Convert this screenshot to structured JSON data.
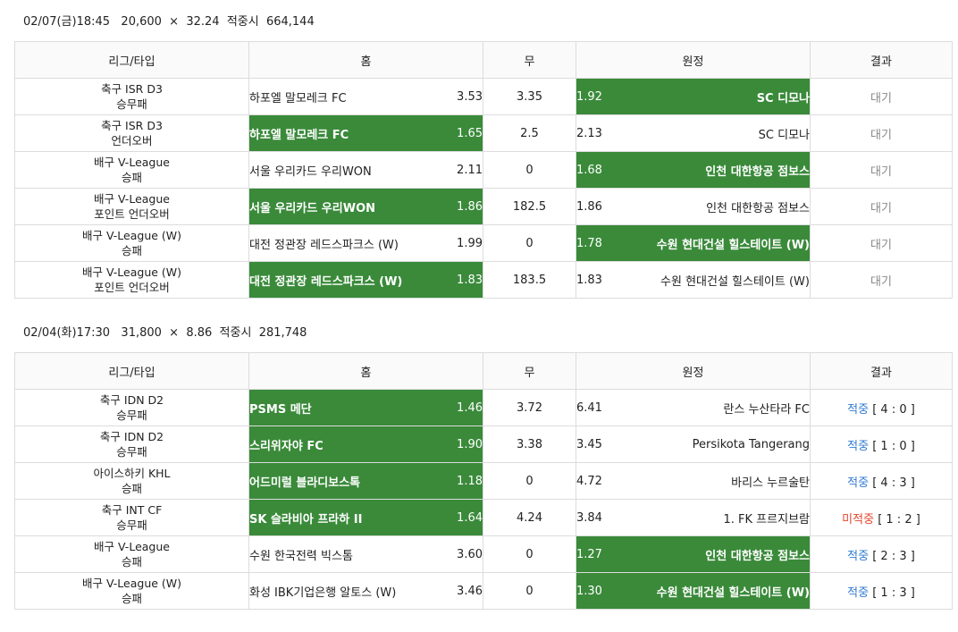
{
  "colors": {
    "highlight": "#3a8a3a",
    "hit": "#2f7ad2",
    "miss": "#e4452b",
    "wait": "#888888"
  },
  "headers": {
    "league": "리그/타입",
    "home": "홈",
    "draw": "무",
    "away": "원정",
    "result": "결과"
  },
  "sections": [
    {
      "summary": "02/07(금)18:45   20,600  ×  32.24  적중시  664,144",
      "rows": [
        {
          "league": "축구 ISR D3",
          "type": "승무패",
          "home": "하포엘 말모레크 FC",
          "home_odds": "3.53",
          "draw": "3.35",
          "away_odds": "1.92",
          "away": "SC 디모나",
          "result": "대기",
          "pick": "away",
          "status": "wait"
        },
        {
          "league": "축구 ISR D3",
          "type": "언더오버",
          "home": "하포엘 말모레크 FC",
          "home_odds": "1.65",
          "draw": "2.5",
          "away_odds": "2.13",
          "away": "SC 디모나",
          "result": "대기",
          "pick": "home",
          "status": "wait"
        },
        {
          "league": "배구 V-League",
          "type": "승패",
          "home": "서울 우리카드 우리WON",
          "home_odds": "2.11",
          "draw": "0",
          "away_odds": "1.68",
          "away": "인천 대한항공 점보스",
          "result": "대기",
          "pick": "away",
          "status": "wait"
        },
        {
          "league": "배구 V-League",
          "type": "포인트 언더오버",
          "home": "서울 우리카드 우리WON",
          "home_odds": "1.86",
          "draw": "182.5",
          "away_odds": "1.86",
          "away": "인천 대한항공 점보스",
          "result": "대기",
          "pick": "home",
          "status": "wait"
        },
        {
          "league": "배구 V-League (W)",
          "type": "승패",
          "home": "대전 정관장 레드스파크스 (W)",
          "home_odds": "1.99",
          "draw": "0",
          "away_odds": "1.78",
          "away": "수원 현대건설 힐스테이트 (W)",
          "result": "대기",
          "pick": "away",
          "status": "wait"
        },
        {
          "league": "배구 V-League (W)",
          "type": "포인트 언더오버",
          "home": "대전 정관장 레드스파크스 (W)",
          "home_odds": "1.83",
          "draw": "183.5",
          "away_odds": "1.83",
          "away": "수원 현대건설 힐스테이트 (W)",
          "result": "대기",
          "pick": "home",
          "status": "wait"
        }
      ]
    },
    {
      "summary": "02/04(화)17:30   31,800  ×  8.86  적중시  281,748",
      "rows": [
        {
          "league": "축구 IDN D2",
          "type": "승무패",
          "home": "PSMS 메단",
          "home_odds": "1.46",
          "draw": "3.72",
          "away_odds": "6.41",
          "away": "란스 누산타라 FC",
          "result": "적중",
          "score": "[ 4 : 0 ]",
          "pick": "home",
          "status": "hit"
        },
        {
          "league": "축구 IDN D2",
          "type": "승무패",
          "home": "스리위자야 FC",
          "home_odds": "1.90",
          "draw": "3.38",
          "away_odds": "3.45",
          "away": "Persikota Tangerang",
          "result": "적중",
          "score": "[ 1 : 0 ]",
          "pick": "home",
          "status": "hit"
        },
        {
          "league": "아이스하키 KHL",
          "type": "승패",
          "home": "어드미럴 블라디보스톡",
          "home_odds": "1.18",
          "draw": "0",
          "away_odds": "4.72",
          "away": "바리스 누르술탄",
          "result": "적중",
          "score": "[ 4 : 3 ]",
          "pick": "home",
          "status": "hit"
        },
        {
          "league": "축구 INT CF",
          "type": "승무패",
          "home": "SK 슬라비아 프라하 II",
          "home_odds": "1.64",
          "draw": "4.24",
          "away_odds": "3.84",
          "away": "1. FK 프르지브람",
          "result": "미적중",
          "score": "[ 1 : 2 ]",
          "pick": "home",
          "status": "miss"
        },
        {
          "league": "배구 V-League",
          "type": "승패",
          "home": "수원 한국전력 빅스톰",
          "home_odds": "3.60",
          "draw": "0",
          "away_odds": "1.27",
          "away": "인천 대한항공 점보스",
          "result": "적중",
          "score": "[ 2 : 3 ]",
          "pick": "away",
          "status": "hit"
        },
        {
          "league": "배구 V-League (W)",
          "type": "승패",
          "home": "화성 IBK기업은행 알토스 (W)",
          "home_odds": "3.46",
          "draw": "0",
          "away_odds": "1.30",
          "away": "수원 현대건설 힐스테이트 (W)",
          "result": "적중",
          "score": "[ 1 : 3 ]",
          "pick": "away",
          "status": "hit"
        }
      ]
    }
  ]
}
